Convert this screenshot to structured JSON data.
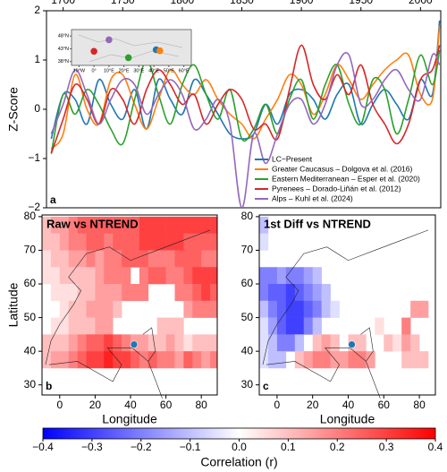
{
  "chart_data": [
    {
      "type": "line",
      "ylabel": "Z-Score",
      "label": "a",
      "xaxis_position": "top",
      "xlim": [
        1686,
        2017
      ],
      "xticks": [
        1700,
        1750,
        1800,
        1850,
        1900,
        1950,
        2000
      ],
      "ylim": [
        -2,
        2
      ],
      "yticks": [
        {
          "value": -2,
          "label": "−2"
        },
        {
          "value": -1,
          "label": "−1"
        },
        0,
        1,
        2
      ],
      "legend": "lower right",
      "x": [
        1690,
        1700,
        1710,
        1720,
        1730,
        1740,
        1750,
        1760,
        1770,
        1780,
        1790,
        1800,
        1810,
        1820,
        1830,
        1840,
        1850,
        1860,
        1870,
        1880,
        1890,
        1900,
        1910,
        1920,
        1930,
        1940,
        1950,
        1960,
        1970,
        1980,
        1990,
        2000,
        2010,
        2016
      ],
      "series": [
        {
          "name": "LC−Present",
          "color": "#1f77b4",
          "values": [
            -0.6,
            0.3,
            0.2,
            -0.3,
            0.6,
            0.1,
            -0.2,
            0.4,
            -0.4,
            0.6,
            0.2,
            -0.1,
            0.6,
            0.3,
            -0.1,
            -0.5,
            -0.6,
            -0.5,
            0.1,
            -0.3,
            0.3,
            0.4,
            0.2,
            -0.2,
            0.3,
            0.5,
            -0.3,
            0.1,
            0.4,
            0.1,
            -0.2,
            0.6,
            0.3,
            1.8
          ]
        },
        {
          "name": "Greater Caucasus – Dolgova et al. (2016)",
          "color": "#ff7f0e",
          "values": [
            -0.8,
            -0.5,
            0.7,
            0.0,
            -0.3,
            0.6,
            0.7,
            0.1,
            -0.4,
            0.2,
            0.8,
            0.5,
            0.3,
            0.6,
            0.2,
            -0.1,
            -0.3,
            -0.6,
            -0.2,
            0.2,
            0.7,
            0.5,
            -0.1,
            0.3,
            0.9,
            0.6,
            0.2,
            0.5,
            0.8,
            1.0,
            1.1,
            0.3,
            0.2,
            1.7
          ]
        },
        {
          "name": "Eastern Mediterranean – Esper et al. (2020)",
          "color": "#2ca02c",
          "values": [
            -0.9,
            0.3,
            -0.1,
            0.4,
            0.1,
            -0.4,
            -0.7,
            0.2,
            1.0,
            0.3,
            -0.3,
            0.5,
            0.9,
            0.3,
            -0.2,
            0.4,
            -0.6,
            -0.4,
            0.1,
            -0.5,
            0.2,
            0.6,
            -0.2,
            0.5,
            0.9,
            0.1,
            -0.3,
            0.6,
            0.4,
            -0.5,
            0.2,
            1.1,
            0.5,
            1.2
          ]
        },
        {
          "name": "Pyrenees – Dorado-Liñán et al. (2012)",
          "color": "#d62728",
          "values": [
            -0.9,
            -0.2,
            0.5,
            0.2,
            -0.3,
            0.4,
            0.2,
            -0.3,
            0.4,
            0.8,
            0.5,
            0.1,
            0.3,
            -0.3,
            0.1,
            0.4,
            0.2,
            -0.4,
            -0.3,
            -0.6,
            0.4,
            1.3,
            0.5,
            0.2,
            0.7,
            0.3,
            0.9,
            0.1,
            -0.3,
            -0.7,
            -0.3,
            0.6,
            0.8,
            1.3
          ]
        },
        {
          "name": "Alps – Kuhl et al. (2024)",
          "color": "#9467bd",
          "values": [
            -0.5,
            0.1,
            0.8,
            0.3,
            -0.3,
            0.2,
            0.6,
            0.5,
            -0.1,
            0.3,
            0.6,
            0.3,
            -0.4,
            -0.2,
            0.2,
            -0.3,
            -2.0,
            -0.5,
            -1.1,
            -0.5,
            0.1,
            0.2,
            -0.3,
            0.1,
            0.9,
            1.1,
            0.1,
            0.2,
            0.6,
            0.8,
            0.4,
            0.2,
            1.1,
            0.9
          ]
        }
      ]
    },
    {
      "type": "scatter",
      "xlim": [
        -15,
        65
      ],
      "xticks": [
        {
          "value": -10,
          "label": "10°W"
        },
        {
          "value": 0,
          "label": "0°"
        },
        {
          "value": 10,
          "label": "10°E"
        },
        {
          "value": 20,
          "label": "20°E"
        },
        {
          "value": 30,
          "label": "30°E"
        },
        {
          "value": 40,
          "label": "40°E"
        },
        {
          "value": 50,
          "label": "50°E"
        },
        {
          "value": 60,
          "label": "60°E"
        }
      ],
      "ylim": [
        36.5,
        50.5
      ],
      "yticks": [
        {
          "value": 38,
          "label": "38°N"
        },
        {
          "value": 43,
          "label": "43°N"
        },
        {
          "value": 48,
          "label": "48°N"
        }
      ],
      "x": [
        0,
        10,
        23,
        41.5,
        44
      ],
      "values": [
        42,
        46.5,
        39.5,
        42.6,
        42.2
      ],
      "colors": [
        "#d62728",
        "#9467bd",
        "#2ca02c",
        "#1f77b4",
        "#ff7f0e"
      ]
    },
    {
      "type": "heatmap",
      "title": "Raw vs NTREND",
      "label": "b",
      "xlabel": "Longitude",
      "ylabel": "Latitude",
      "xlim": [
        -10,
        89
      ],
      "xticks": [
        0,
        20,
        40,
        60,
        80
      ],
      "ylim": [
        27,
        80.5
      ],
      "yticks": [
        30,
        40,
        50,
        60,
        70,
        80
      ],
      "site": {
        "x": 42,
        "y": 42,
        "color": "#1f77b4"
      },
      "x": [
        -7.5,
        -2.5,
        2.5,
        7.5,
        12.5,
        17.5,
        22.5,
        27.5,
        32.5,
        37.5,
        42.5,
        47.5,
        52.5,
        57.5,
        62.5,
        67.5,
        72.5,
        77.5,
        82.5,
        87.5
      ],
      "y": [
        77.5,
        72.5,
        67.5,
        62.5,
        57.5,
        52.5,
        47.5,
        42.5,
        37.5
      ],
      "values": [
        [
          0.1,
          0.15,
          0.15,
          0.2,
          0.25,
          0.25,
          0.25,
          0.25,
          0.25,
          0.25,
          0.25,
          0.3,
          0.3,
          0.3,
          0.3,
          0.3,
          0.3,
          0.3,
          0.3,
          0.3
        ],
        [
          0.1,
          0.1,
          0.15,
          0.2,
          0.2,
          0.25,
          0.25,
          0.2,
          0.25,
          0.25,
          0.25,
          0.3,
          0.3,
          0.3,
          0.3,
          0.3,
          0.25,
          0.25,
          0.25,
          0.25
        ],
        [
          0.05,
          0.1,
          0.1,
          0.15,
          0.15,
          0.2,
          0.15,
          0.2,
          0.2,
          0.25,
          0.25,
          0.25,
          0.2,
          0.2,
          0.2,
          0.25,
          0.25,
          0.25,
          0.2,
          0.2
        ],
        [
          0.05,
          0.05,
          0.1,
          0.1,
          0.1,
          0.1,
          0.15,
          0.2,
          0.2,
          0.2,
          null,
          0.2,
          0.25,
          0.25,
          0.2,
          0.2,
          0.25,
          0.3,
          0.3,
          0.3
        ],
        [
          null,
          0.05,
          0.05,
          0.05,
          0.1,
          0.1,
          0.15,
          0.15,
          0.15,
          0.2,
          0.2,
          0.2,
          null,
          null,
          null,
          0.2,
          0.2,
          0.25,
          0.3,
          0.25
        ],
        [
          null,
          null,
          0.05,
          0.1,
          0.1,
          0.15,
          0.15,
          0.15,
          0.1,
          null,
          null,
          null,
          null,
          null,
          null,
          null,
          0.15,
          0.2,
          0.2,
          0.2
        ],
        [
          null,
          0.05,
          0.05,
          0.1,
          0.1,
          0.1,
          0.15,
          0.15,
          null,
          null,
          null,
          null,
          null,
          0.1,
          0.1,
          0.1,
          null,
          null,
          null,
          null
        ],
        [
          0.1,
          0.1,
          0.1,
          0.15,
          0.2,
          0.25,
          0.25,
          0.3,
          0.25,
          0.2,
          0.15,
          0.15,
          0.1,
          0.1,
          0.15,
          0.1,
          0.05,
          0.1,
          0.1,
          0.1
        ],
        [
          0.1,
          0.15,
          0.15,
          0.2,
          0.25,
          0.3,
          0.3,
          0.35,
          0.3,
          0.3,
          0.25,
          0.2,
          0.25,
          0.2,
          0.2,
          0.15,
          0.25,
          0.2,
          0.15,
          0.2
        ]
      ]
    },
    {
      "type": "heatmap",
      "title": "1st Diff vs NTREND",
      "label": "c",
      "xlabel": "Longitude",
      "xlim": [
        -10,
        89
      ],
      "xticks": [
        0,
        20,
        40,
        60,
        80
      ],
      "ylim": [
        27,
        80.5
      ],
      "yticks": [
        30,
        40,
        50,
        60,
        70,
        80
      ],
      "site": {
        "x": 42,
        "y": 42,
        "color": "#1f77b4"
      },
      "x": [
        -7.5,
        -2.5,
        2.5,
        7.5,
        12.5,
        17.5,
        22.5,
        27.5,
        32.5,
        37.5,
        42.5,
        47.5,
        52.5,
        57.5,
        62.5,
        67.5,
        72.5,
        77.5,
        82.5,
        87.5
      ],
      "y": [
        77.5,
        72.5,
        67.5,
        62.5,
        57.5,
        52.5,
        47.5,
        42.5,
        37.5
      ],
      "values": [
        [
          -0.1,
          null,
          null,
          null,
          null,
          null,
          null,
          null,
          null,
          null,
          null,
          null,
          null,
          null,
          null,
          null,
          null,
          null,
          null,
          null
        ],
        [
          -0.05,
          null,
          null,
          null,
          null,
          null,
          null,
          null,
          null,
          null,
          null,
          null,
          null,
          null,
          null,
          null,
          null,
          null,
          null,
          null
        ],
        [
          null,
          null,
          null,
          null,
          null,
          null,
          null,
          null,
          null,
          null,
          null,
          null,
          null,
          null,
          null,
          null,
          null,
          null,
          null,
          null
        ],
        [
          -0.2,
          -0.2,
          -0.15,
          -0.2,
          -0.2,
          -0.15,
          -0.1,
          null,
          null,
          null,
          null,
          null,
          null,
          null,
          null,
          null,
          null,
          null,
          null,
          null
        ],
        [
          -0.2,
          -0.25,
          -0.25,
          -0.3,
          -0.25,
          -0.2,
          -0.15,
          -0.1,
          null,
          null,
          null,
          null,
          null,
          null,
          null,
          null,
          null,
          null,
          null,
          null
        ],
        [
          -0.1,
          -0.2,
          -0.25,
          -0.3,
          -0.3,
          -0.25,
          -0.2,
          -0.1,
          -0.05,
          null,
          null,
          null,
          null,
          null,
          null,
          null,
          null,
          0.15,
          0.15,
          null
        ],
        [
          -0.05,
          -0.15,
          -0.25,
          -0.3,
          -0.3,
          -0.2,
          -0.1,
          null,
          null,
          null,
          null,
          null,
          null,
          0.05,
          null,
          null,
          0.2,
          null,
          null,
          null
        ],
        [
          -0.05,
          -0.1,
          -0.2,
          -0.2,
          -0.1,
          null,
          0.1,
          0.15,
          0.1,
          null,
          0.1,
          0.1,
          null,
          null,
          0.1,
          0.05,
          0.15,
          0.1,
          null,
          null
        ],
        [
          -0.05,
          -0.1,
          -0.1,
          null,
          0.1,
          0.15,
          0.2,
          0.2,
          0.15,
          0.15,
          0.2,
          0.2,
          0.15,
          null,
          null,
          null,
          0.1,
          0.1,
          0.1,
          null
        ]
      ]
    },
    {
      "type": "colorbar",
      "xlabel": "Correlation (r)",
      "colormap": [
        "#0000ff",
        "#ffffff",
        "#ff0000"
      ],
      "xlim": [
        -0.4,
        0.4
      ],
      "xticks": [
        {
          "value": -0.4,
          "label": "−0.4"
        },
        {
          "value": -0.3,
          "label": "−0.3"
        },
        {
          "value": -0.2,
          "label": "−0.2"
        },
        {
          "value": -0.1,
          "label": "−0.1"
        },
        {
          "value": 0,
          "label": "0.0"
        },
        0.1,
        0.2,
        0.3,
        0.4
      ]
    }
  ]
}
